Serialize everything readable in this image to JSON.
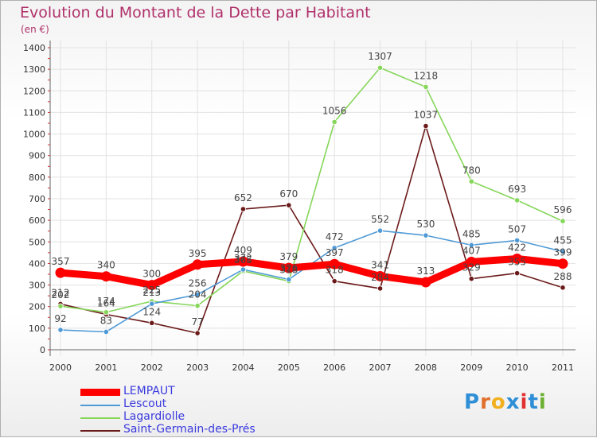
{
  "title": "Evolution du Montant de la Dette par Habitant",
  "subtitle": "(en €)",
  "logo": {
    "text": "Proxiti",
    "letters": [
      "P",
      "r",
      "o",
      "x",
      "i",
      "t",
      "i"
    ],
    "colors": [
      "#2f8fd6",
      "#e0702a",
      "#f0b020",
      "#2f8fd6",
      "#e03030",
      "#2f8fd6",
      "#6ab030"
    ]
  },
  "chart_data": {
    "type": "line",
    "x": [
      "2000",
      "2001",
      "2002",
      "2003",
      "2004",
      "2005",
      "2006",
      "2007",
      "2008",
      "2009",
      "2010",
      "2011"
    ],
    "ylim": [
      0,
      1400
    ],
    "yticks": [
      0,
      100,
      200,
      300,
      400,
      500,
      600,
      700,
      800,
      900,
      1000,
      1100,
      1200,
      1300,
      1400
    ],
    "grid": true,
    "legend_position": "bottom",
    "series": [
      {
        "name": "LEMPAUT",
        "color": "#ff0000",
        "values": [
          357,
          340,
          300,
          395,
          409,
          379,
          397,
          341,
          313,
          407,
          422,
          399
        ]
      },
      {
        "name": "Lescout",
        "color": "#4f9ad6",
        "values": [
          92,
          83,
          213,
          256,
          372,
          326,
          472,
          552,
          530,
          485,
          507,
          455
        ]
      },
      {
        "name": "Lagardiolle",
        "color": "#86d65a",
        "values": [
          202,
          174,
          225,
          204,
          365,
          318,
          1056,
          1307,
          1218,
          780,
          693,
          596
        ]
      },
      {
        "name": "Saint-Germain-des-Prés",
        "color": "#6b1a1a",
        "values": [
          212,
          164,
          124,
          77,
          652,
          670,
          318,
          284,
          1037,
          329,
          355,
          288
        ]
      }
    ]
  }
}
